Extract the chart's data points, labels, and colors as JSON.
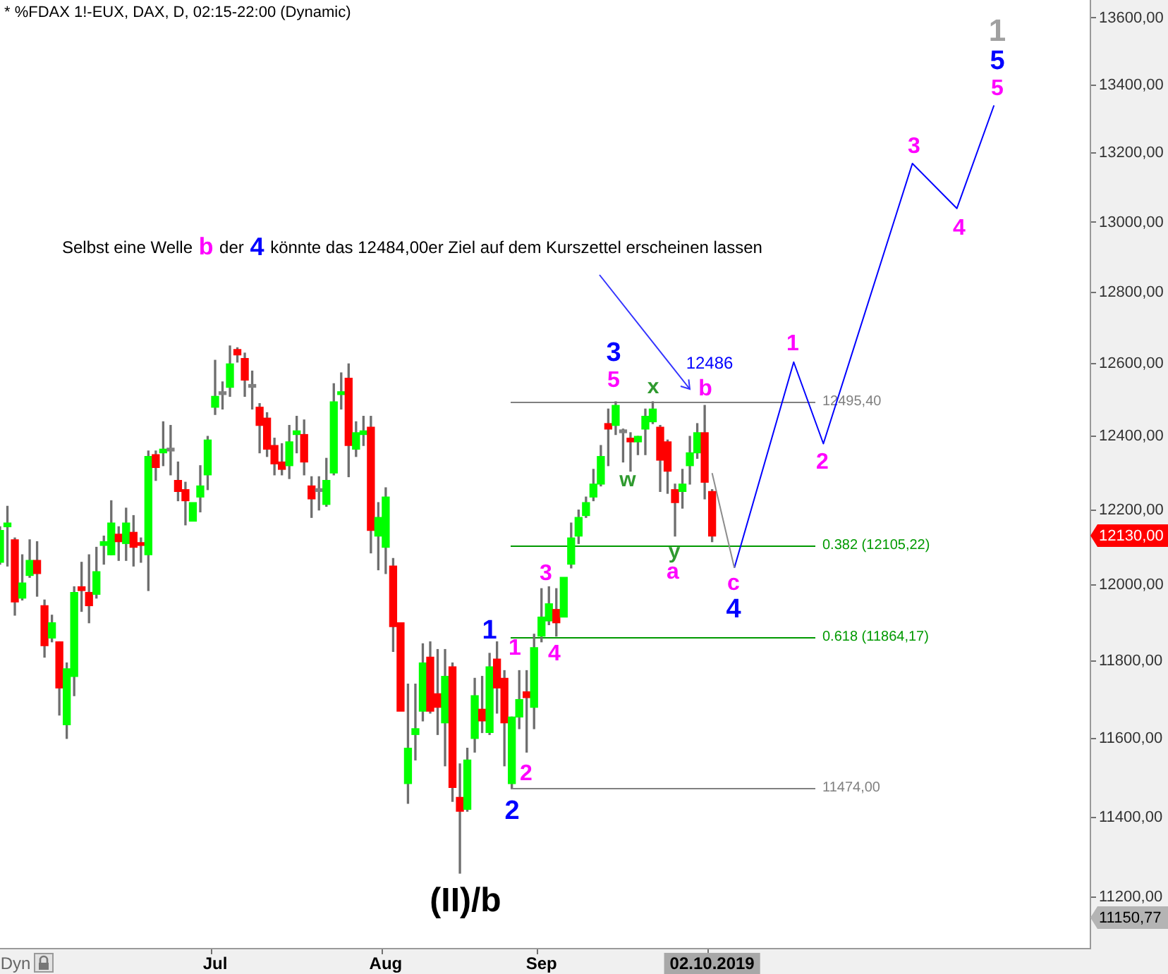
{
  "chart_data": {
    "type": "candlestick",
    "title": "* %FDAX 1!-EUX, DAX, D, 02:15-22:00 (Dynamic)",
    "categories": [
      null,
      null,
      null,
      null,
      null,
      null,
      null,
      null,
      null,
      null,
      null,
      null,
      null,
      null,
      null,
      null,
      null,
      null,
      null,
      null,
      null,
      null,
      null,
      null,
      null,
      null,
      null,
      null,
      null,
      "Jul",
      null,
      null,
      null,
      null,
      null,
      null,
      null,
      null,
      null,
      null,
      null,
      null,
      null,
      null,
      null,
      null,
      null,
      null,
      null,
      null,
      null,
      null,
      "Aug",
      null,
      null,
      null,
      null,
      null,
      null,
      null,
      null,
      null,
      null,
      null,
      null,
      null,
      null,
      null,
      null,
      null,
      null,
      null,
      null,
      "Sep",
      null,
      null,
      null,
      null,
      null,
      null,
      null,
      null,
      null,
      null,
      null,
      null,
      null,
      null,
      null,
      null,
      null,
      null,
      null,
      null,
      null,
      null,
      "02.10.2019",
      null,
      null,
      null,
      null,
      null,
      null,
      null,
      null,
      null,
      null,
      null,
      null,
      null,
      null,
      null,
      null,
      null,
      null,
      null,
      null,
      null,
      null,
      null,
      null,
      null,
      null,
      null,
      null,
      null,
      null,
      null,
      null,
      null,
      null,
      null,
      null,
      null,
      null,
      null,
      null,
      null,
      null,
      null,
      null,
      null,
      null,
      null,
      null,
      null,
      null,
      null
    ],
    "ohlc": [
      [
        12060,
        12155,
        12055,
        12145
      ],
      [
        12155,
        12210,
        12050,
        12165
      ],
      [
        12120,
        12125,
        11920,
        11955
      ],
      [
        11965,
        12080,
        11960,
        12005
      ],
      [
        12025,
        12120,
        12020,
        12065
      ],
      [
        12065,
        12115,
        11970,
        12030
      ],
      [
        11945,
        11960,
        11810,
        11840
      ],
      [
        11860,
        11920,
        11850,
        11900
      ],
      [
        11850,
        11850,
        11660,
        11730
      ],
      [
        11635,
        11795,
        11600,
        11780
      ],
      [
        11760,
        11995,
        11710,
        11980
      ],
      [
        11995,
        12060,
        11930,
        11985
      ],
      [
        11980,
        12080,
        11900,
        11945
      ],
      [
        11975,
        12100,
        11965,
        12035
      ],
      [
        12105,
        12130,
        12055,
        12115
      ],
      [
        12080,
        12225,
        12080,
        12165
      ],
      [
        12135,
        12155,
        12065,
        12115
      ],
      [
        12110,
        12205,
        12065,
        12165
      ],
      [
        12140,
        12185,
        12050,
        12100
      ],
      [
        12110,
        12125,
        12060,
        12105
      ],
      [
        12080,
        12360,
        11985,
        12345
      ],
      [
        12350,
        12360,
        12280,
        12315
      ],
      [
        12355,
        12440,
        12320,
        12365
      ],
      [
        12360,
        12430,
        12295,
        12360
      ],
      [
        12280,
        12330,
        12225,
        12250
      ],
      [
        12255,
        12275,
        12160,
        12225
      ],
      [
        12170,
        12220,
        12170,
        12220
      ],
      [
        12235,
        12320,
        12195,
        12265
      ],
      [
        12295,
        12400,
        12255,
        12390
      ],
      [
        12480,
        12610,
        12460,
        12510
      ],
      [
        12515,
        12550,
        12475,
        12515
      ],
      [
        12535,
        12650,
        12510,
        12600
      ],
      [
        12640,
        12645,
        12605,
        12625
      ],
      [
        12615,
        12630,
        12510,
        12555
      ],
      [
        12535,
        12580,
        12475,
        12535
      ],
      [
        12480,
        12490,
        12355,
        12430
      ],
      [
        12450,
        12465,
        12345,
        12365
      ],
      [
        12375,
        12395,
        12295,
        12325
      ],
      [
        12330,
        12380,
        12295,
        12310
      ],
      [
        12320,
        12430,
        12285,
        12385
      ],
      [
        12405,
        12455,
        12355,
        12415
      ],
      [
        12405,
        12445,
        12295,
        12330
      ],
      [
        12265,
        12290,
        12180,
        12230
      ],
      [
        12250,
        12290,
        12200,
        12250
      ],
      [
        12215,
        12340,
        12210,
        12280
      ],
      [
        12300,
        12545,
        12295,
        12495
      ],
      [
        12515,
        12575,
        12475,
        12520
      ],
      [
        12560,
        12600,
        12290,
        12375
      ],
      [
        12365,
        12440,
        12345,
        12410
      ],
      [
        12405,
        12455,
        12375,
        12415
      ],
      [
        12425,
        12455,
        12085,
        12145
      ],
      [
        12130,
        12220,
        12040,
        12180
      ],
      [
        12100,
        12260,
        12030,
        12235
      ],
      [
        12050,
        12070,
        11825,
        11890
      ],
      [
        11900,
        11900,
        11670,
        11670
      ],
      [
        11485,
        11740,
        11435,
        11575
      ],
      [
        11610,
        11740,
        11545,
        11625
      ],
      [
        11670,
        11845,
        11645,
        11795
      ],
      [
        11810,
        11850,
        11665,
        11670
      ],
      [
        11715,
        11830,
        11610,
        11680
      ],
      [
        11640,
        11830,
        11530,
        11760
      ],
      [
        11785,
        11795,
        11440,
        11475
      ],
      [
        11450,
        11535,
        11260,
        11415
      ],
      [
        11420,
        11575,
        11415,
        11545
      ],
      [
        11600,
        11755,
        11565,
        11710
      ],
      [
        11675,
        11760,
        11615,
        11645
      ],
      [
        11615,
        11820,
        11610,
        11785
      ],
      [
        11805,
        11850,
        11665,
        11730
      ],
      [
        11755,
        11775,
        11530,
        11640
      ],
      [
        11485,
        11655,
        11475,
        11655
      ],
      [
        11655,
        11775,
        11625,
        11700
      ],
      [
        11720,
        11775,
        11565,
        11705
      ],
      [
        11680,
        11870,
        11625,
        11835
      ],
      [
        11865,
        11990,
        11850,
        11915
      ],
      [
        11905,
        11995,
        11895,
        11950
      ],
      [
        11935,
        11990,
        11865,
        11900
      ],
      [
        11915,
        12020,
        11915,
        12020
      ],
      [
        12055,
        12165,
        12045,
        12125
      ],
      [
        12130,
        12200,
        12110,
        12180
      ],
      [
        12185,
        12235,
        12180,
        12220
      ],
      [
        12235,
        12310,
        12225,
        12270
      ],
      [
        12270,
        12375,
        12265,
        12345
      ],
      [
        12435,
        12475,
        12320,
        12420
      ],
      [
        12430,
        12495,
        12405,
        12485
      ],
      [
        12410,
        12420,
        12330,
        12410
      ],
      [
        12395,
        12410,
        12305,
        12385
      ],
      [
        12385,
        12400,
        12350,
        12400
      ],
      [
        12420,
        12475,
        12350,
        12455
      ],
      [
        12440,
        12495,
        12435,
        12475
      ],
      [
        12425,
        12430,
        12250,
        12335
      ],
      [
        12385,
        12390,
        12245,
        12305
      ],
      [
        12255,
        12270,
        12130,
        12220
      ],
      [
        12250,
        12310,
        12205,
        12270
      ],
      [
        12320,
        12400,
        12270,
        12355
      ],
      [
        12355,
        12435,
        12340,
        12410
      ],
      [
        12410,
        12485,
        12230,
        12275
      ],
      [
        12250,
        12255,
        12115,
        12130
      ],
      null,
      null,
      null,
      null,
      null,
      null,
      null,
      null,
      null,
      null,
      null,
      null,
      null,
      null,
      null,
      null,
      null,
      null,
      null,
      null,
      null,
      null,
      null,
      null,
      null,
      null,
      null,
      null,
      null,
      null,
      null,
      null,
      null,
      null,
      null,
      null,
      null,
      null,
      null,
      null,
      null,
      null,
      null,
      null,
      null,
      null,
      null,
      null,
      null,
      null,
      null
    ],
    "colors": [
      "#00ff00",
      "#00ff00",
      "#ff0000",
      "#00ff00",
      "#00ff00",
      "#ff0000",
      "#ff0000",
      "#00ff00",
      "#ff0000",
      "#00ff00",
      "#00ff00",
      "#ff0000",
      "#ff0000",
      "#00ff00",
      "#00ff00",
      "#00ff00",
      "#ff0000",
      "#00ff00",
      "#ff0000",
      "#ff0000",
      "#00ff00",
      "#ff0000",
      "#00ff00",
      "#808080",
      "#ff0000",
      "#ff0000",
      "#00ff00",
      "#00ff00",
      "#00ff00",
      "#00ff00",
      "#808080",
      "#00ff00",
      "#ff0000",
      "#ff0000",
      "#808080",
      "#ff0000",
      "#ff0000",
      "#ff0000",
      "#ff0000",
      "#00ff00",
      "#00ff00",
      "#ff0000",
      "#ff0000",
      "#808080",
      "#00ff00",
      "#00ff00",
      "#00ff00",
      "#ff0000",
      "#00ff00",
      "#00ff00",
      "#ff0000",
      "#00ff00",
      "#00ff00",
      "#ff0000",
      "#ff0000",
      "#00ff00",
      "#00ff00",
      "#00ff00",
      "#ff0000",
      "#ff0000",
      "#00ff00",
      "#ff0000",
      "#ff0000",
      "#00ff00",
      "#00ff00",
      "#ff0000",
      "#00ff00",
      "#ff0000",
      "#ff0000",
      "#00ff00",
      "#00ff00",
      "#ff0000",
      "#00ff00",
      "#00ff00",
      "#00ff00",
      "#ff0000",
      "#00ff00",
      "#00ff00",
      "#00ff00",
      "#00ff00",
      "#00ff00",
      "#00ff00",
      "#ff0000",
      "#00ff00",
      "#808080",
      "#ff0000",
      "#00ff00",
      "#00ff00",
      "#00ff00",
      "#ff0000",
      "#ff0000",
      "#ff0000",
      "#00ff00",
      "#00ff00",
      "#00ff00",
      "#ff0000",
      "#ff0000",
      null,
      null,
      null,
      null,
      null,
      null,
      null,
      null,
      null,
      null,
      null,
      null,
      null,
      null,
      null,
      null,
      null,
      null,
      null,
      null,
      null,
      null,
      null,
      null,
      null,
      null,
      null,
      null,
      null,
      null,
      null,
      null,
      null,
      null,
      null,
      null,
      null,
      null,
      null,
      null,
      null,
      null,
      null,
      null,
      null,
      null,
      null,
      null,
      null,
      null,
      null
    ],
    "series": [
      {
        "type": "line",
        "color": "#8c8c8c",
        "values": [
          null,
          null,
          null,
          null,
          null,
          null,
          null,
          null,
          null,
          null,
          null,
          null,
          null,
          null,
          null,
          null,
          null,
          null,
          null,
          null,
          null,
          null,
          null,
          null,
          null,
          null,
          null,
          null,
          null,
          null,
          null,
          null,
          null,
          null,
          null,
          null,
          null,
          null,
          null,
          null,
          null,
          null,
          null,
          null,
          null,
          null,
          null,
          null,
          null,
          null,
          null,
          null,
          null,
          null,
          null,
          null,
          null,
          null,
          null,
          null,
          null,
          null,
          null,
          null,
          null,
          null,
          null,
          null,
          null,
          null,
          null,
          null,
          null,
          null,
          null,
          null,
          null,
          null,
          null,
          null,
          null,
          null,
          null,
          null,
          null,
          null,
          null,
          null,
          null,
          null,
          null,
          null,
          null,
          null,
          null,
          null,
          12300,
          null,
          null,
          12045,
          null,
          null,
          null,
          null,
          null,
          null,
          null,
          null,
          null,
          null,
          null,
          null,
          null,
          null,
          null,
          null,
          null,
          null,
          null,
          null,
          null,
          null,
          null,
          null,
          null,
          null,
          null,
          null,
          null,
          null,
          null,
          null,
          null,
          null,
          null,
          null,
          null,
          null,
          null,
          null,
          null,
          null,
          null,
          null,
          null,
          null,
          null,
          null
        ]
      },
      {
        "type": "line",
        "color": "#0000ff",
        "values": [
          null,
          null,
          null,
          null,
          null,
          null,
          null,
          null,
          null,
          null,
          null,
          null,
          null,
          null,
          null,
          null,
          null,
          null,
          null,
          null,
          null,
          null,
          null,
          null,
          null,
          null,
          null,
          null,
          null,
          null,
          null,
          null,
          null,
          null,
          null,
          null,
          null,
          null,
          null,
          null,
          null,
          null,
          null,
          null,
          null,
          null,
          null,
          null,
          null,
          null,
          null,
          null,
          null,
          null,
          null,
          null,
          null,
          null,
          null,
          null,
          null,
          null,
          null,
          null,
          null,
          null,
          null,
          null,
          null,
          null,
          null,
          null,
          null,
          null,
          null,
          null,
          null,
          null,
          null,
          null,
          null,
          null,
          null,
          null,
          null,
          null,
          null,
          null,
          null,
          null,
          null,
          null,
          null,
          null,
          null,
          null,
          null,
          null,
          null,
          12045,
          null,
          null,
          null,
          null,
          null,
          null,
          null,
          12605,
          null,
          null,
          null,
          12380,
          null,
          null,
          null,
          null,
          null,
          null,
          null,
          null,
          null,
          null,
          null,
          13170,
          null,
          null,
          null,
          null,
          null,
          13040,
          null,
          null,
          null,
          null,
          13340,
          null,
          null,
          null,
          null,
          null,
          null,
          null,
          null,
          null,
          null,
          null,
          null,
          null
        ]
      }
    ],
    "ylim": [
      11074,
      13654
    ],
    "yticks": [
      {
        "value": 11200,
        "label": "11200,00"
      },
      {
        "value": 11400,
        "label": "11400,00"
      },
      {
        "value": 11600,
        "label": "11600,00"
      },
      {
        "value": 11800,
        "label": "11800,00"
      },
      {
        "value": 12000,
        "label": "12000,00"
      },
      {
        "value": 12200,
        "label": "12200,00"
      },
      {
        "value": 12400,
        "label": "12400,00"
      },
      {
        "value": 12600,
        "label": "12600,00"
      },
      {
        "value": 12800,
        "label": "12800,00"
      },
      {
        "value": 13000,
        "label": "13000,00"
      },
      {
        "value": 13200,
        "label": "13200,00"
      },
      {
        "value": 13400,
        "label": "13400,00"
      },
      {
        "value": 13600,
        "label": "13600,00"
      }
    ],
    "log": true,
    "grid": false,
    "legend": false,
    "marker": "none",
    "ref_lines": [
      {
        "axis": "y",
        "value": 12495.4,
        "label": "12495,40",
        "color": "#808080"
      },
      {
        "axis": "y",
        "value": 12105.22,
        "label": "0.382 (12105,22)",
        "color": "#009900"
      },
      {
        "axis": "y",
        "value": 11864.17,
        "label": "0.618 (11864,17)",
        "color": "#009900"
      },
      {
        "axis": "y",
        "value": 11474,
        "label": "11474,00",
        "color": "#808080"
      }
    ],
    "annotations": [
      "Selbst eine Welle",
      "b",
      "der",
      "4",
      "könnte das 12484,00er Ziel auf dem Kurszettel erscheinen lassen",
      "1",
      "5",
      "5",
      "3",
      "4",
      "1",
      "2",
      "3",
      "5",
      "x",
      "12486",
      "b",
      "w",
      "y",
      "a",
      "c",
      "4",
      "3",
      "1",
      "1",
      "4",
      "2",
      "2",
      "(II)/b",
      "12130,00",
      "11150,77",
      "Dyn"
    ]
  }
}
